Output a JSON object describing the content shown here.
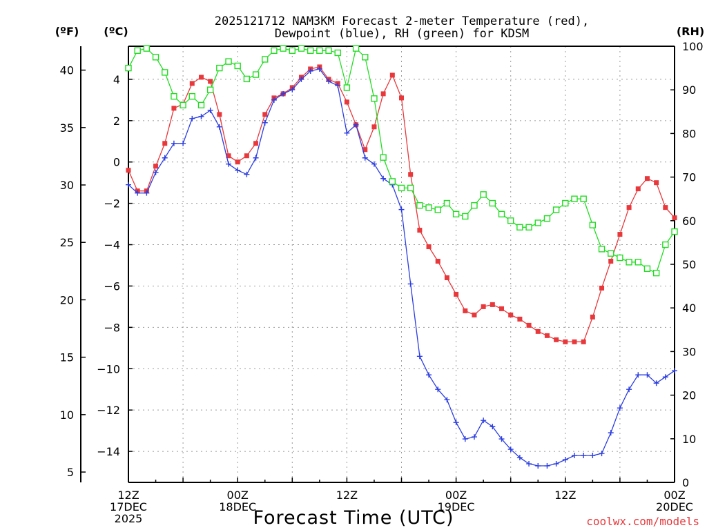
{
  "chart_data": {
    "type": "line",
    "title_line1": "2025121712 NAM3KM Forecast 2-meter Temperature (red),",
    "title_line2": "Dewpoint (blue), RH (green) for KDSM",
    "units": {
      "fahrenheit": "(ºF)",
      "celsius": "(ºC)",
      "rh": "(RH)"
    },
    "xlabel": "Forecast Time (UTC)",
    "credit": "coolwx.com/models",
    "x_range_hours": [
      0,
      60
    ],
    "c_range": [
      -15.5,
      5.6
    ],
    "rh_range": [
      0,
      100
    ],
    "f_ticks": [
      "40",
      "35",
      "30",
      "25",
      "20",
      "15",
      "10",
      "5"
    ],
    "c_ticks": [
      "4",
      "2",
      "0",
      "−2",
      "−4",
      "−6",
      "−8",
      "−10",
      "−12",
      "−14"
    ],
    "rh_ticks": [
      "100",
      "90",
      "80",
      "70",
      "60",
      "50",
      "40",
      "30",
      "20",
      "10",
      "0"
    ],
    "x_ticks": [
      {
        "hour": 0,
        "lines": [
          "12Z",
          "17DEC",
          "2025"
        ]
      },
      {
        "hour": 12,
        "lines": [
          "00Z",
          "18DEC"
        ]
      },
      {
        "hour": 24,
        "lines": [
          "12Z"
        ]
      },
      {
        "hour": 36,
        "lines": [
          "00Z",
          "19DEC"
        ]
      },
      {
        "hour": 48,
        "lines": [
          "12Z"
        ]
      },
      {
        "hour": 60,
        "lines": [
          "00Z",
          "20DEC"
        ]
      }
    ],
    "series": [
      {
        "name": "Temperature",
        "color": "#e8383b",
        "marker": "filled-square",
        "values": [
          -0.4,
          -1.4,
          -1.4,
          -0.2,
          0.9,
          2.6,
          2.8,
          3.8,
          4.1,
          3.9,
          2.3,
          0.3,
          0.0,
          0.3,
          0.9,
          2.3,
          3.1,
          3.3,
          3.6,
          4.1,
          4.5,
          4.6,
          4.0,
          3.8,
          2.9,
          1.8,
          0.6,
          1.7,
          3.3,
          4.2,
          3.1,
          -0.6,
          -3.3,
          -4.1,
          -4.8,
          -5.6,
          -6.4,
          -7.2,
          -7.4,
          -7.0,
          -6.9,
          -7.1,
          -7.4,
          -7.6,
          -7.9,
          -8.2,
          -8.4,
          -8.6,
          -8.7,
          -8.7,
          -8.7,
          -7.5,
          -6.1,
          -4.8,
          -3.5,
          -2.2,
          -1.3,
          -0.8,
          -1.0,
          -2.2,
          -2.7
        ]
      },
      {
        "name": "Dewpoint",
        "color": "#2b3de0",
        "marker": "plus",
        "values": [
          -1.1,
          -1.5,
          -1.5,
          -0.5,
          0.2,
          0.9,
          0.9,
          2.1,
          2.2,
          2.5,
          1.7,
          -0.1,
          -0.4,
          -0.6,
          0.2,
          1.9,
          3.0,
          3.3,
          3.5,
          4.0,
          4.4,
          4.5,
          3.9,
          3.7,
          1.4,
          1.8,
          0.2,
          -0.1,
          -0.8,
          -1.1,
          -2.3,
          -5.9,
          -9.4,
          -10.3,
          -11.0,
          -11.5,
          -12.6,
          -13.4,
          -13.3,
          -12.5,
          -12.8,
          -13.4,
          -13.9,
          -14.3,
          -14.6,
          -14.7,
          -14.7,
          -14.6,
          -14.4,
          -14.2,
          -14.2,
          -14.2,
          -14.1,
          -13.1,
          -11.9,
          -11.0,
          -10.3,
          -10.3,
          -10.7,
          -10.4,
          -10.1
        ]
      },
      {
        "name": "RH",
        "color": "#22dd22",
        "marker": "open-square",
        "values": [
          95,
          99,
          99.5,
          97.5,
          94,
          88.5,
          86.5,
          88.5,
          86.5,
          90,
          95,
          96.5,
          95.5,
          92.5,
          93.5,
          97,
          99,
          99.5,
          99,
          99.5,
          99,
          99,
          99,
          98.5,
          90.5,
          99.5,
          97.5,
          88,
          74.5,
          69,
          67.5,
          67.5,
          63.5,
          63,
          62.5,
          64,
          61.5,
          61,
          63.5,
          66,
          64,
          61.5,
          60,
          58.5,
          58.5,
          59.5,
          60.5,
          62.5,
          64,
          65,
          65,
          59,
          53.5,
          52.5,
          51.5,
          50.5,
          50.5,
          49,
          48,
          54.5,
          57.5
        ]
      }
    ]
  }
}
